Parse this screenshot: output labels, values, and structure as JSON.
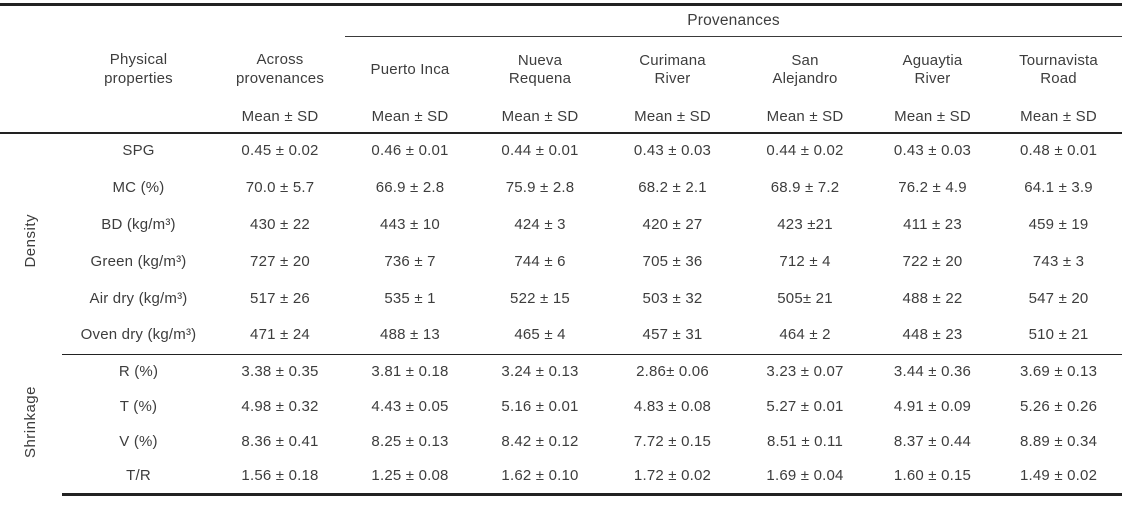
{
  "table": {
    "provenances_header": "Provenances",
    "mean_sd": "Mean ± SD",
    "physical_properties": {
      "line1": "Physical",
      "line2": "properties"
    },
    "columns": [
      {
        "line1": "Across",
        "line2": "provenances"
      },
      {
        "line1": "Puerto Inca",
        "line2": ""
      },
      {
        "line1": "Nueva",
        "line2": "Requena"
      },
      {
        "line1": "Curimana",
        "line2": "River"
      },
      {
        "line1": "San",
        "line2": "Alejandro"
      },
      {
        "line1": "Aguaytia",
        "line2": "River"
      },
      {
        "line1": "Tournavista",
        "line2": "Road"
      }
    ],
    "sections": [
      {
        "label": "Density",
        "rows": [
          {
            "label": "SPG",
            "values": [
              "0.45 ± 0.02",
              "0.46 ± 0.01",
              "0.44 ± 0.01",
              "0.43 ± 0.03",
              "0.44 ± 0.02",
              "0.43 ± 0.03",
              "0.48 ± 0.01"
            ]
          },
          {
            "label": "MC (%)",
            "values": [
              "70.0 ± 5.7",
              "66.9 ± 2.8",
              "75.9 ± 2.8",
              "68.2 ± 2.1",
              "68.9 ± 7.2",
              "76.2 ± 4.9",
              "64.1 ± 3.9"
            ]
          },
          {
            "label": "BD (kg/m³)",
            "values": [
              "430 ± 22",
              "443 ± 10",
              "424 ± 3",
              "420 ± 27",
              "423 ±21",
              "411 ± 23",
              "459 ± 19"
            ]
          },
          {
            "label": "Green (kg/m³)",
            "values": [
              "727 ± 20",
              "736 ± 7",
              "744 ± 6",
              "705 ± 36",
              "712 ± 4",
              "722 ± 20",
              "743 ± 3"
            ]
          },
          {
            "label": "Air dry (kg/m³)",
            "values": [
              "517 ± 26",
              "535 ± 1",
              "522 ± 15",
              "503 ± 32",
              "505± 21",
              "488 ± 22",
              "547 ± 20"
            ]
          },
          {
            "label": "Oven dry (kg/m³)",
            "values": [
              "471 ± 24",
              "488 ± 13",
              "465 ± 4",
              "457 ± 31",
              "464 ± 2",
              "448 ± 23",
              "510 ± 21"
            ]
          }
        ]
      },
      {
        "label": "Shrinkage",
        "rows": [
          {
            "label": "R (%)",
            "values": [
              "3.38 ± 0.35",
              "3.81 ± 0.18",
              "3.24 ± 0.13",
              "2.86± 0.06",
              "3.23 ± 0.07",
              "3.44 ± 0.36",
              "3.69 ± 0.13"
            ]
          },
          {
            "label": "T (%)",
            "values": [
              "4.98 ± 0.32",
              "4.43 ± 0.05",
              "5.16 ± 0.01",
              "4.83 ± 0.08",
              "5.27 ± 0.01",
              "4.91 ± 0.09",
              "5.26 ± 0.26"
            ]
          },
          {
            "label": "V (%)",
            "values": [
              "8.36 ± 0.41",
              "8.25 ± 0.13",
              "8.42 ± 0.12",
              "7.72 ± 0.15",
              "8.51 ± 0.11",
              "8.37 ± 0.44",
              "8.89 ± 0.34"
            ]
          },
          {
            "label": "T/R",
            "values": [
              "1.56 ± 0.18",
              "1.25 ± 0.08",
              "1.62 ± 0.10",
              "1.72 ± 0.02",
              "1.69 ± 0.04",
              "1.60 ± 0.15",
              "1.49 ± 0.02"
            ]
          }
        ]
      }
    ]
  }
}
